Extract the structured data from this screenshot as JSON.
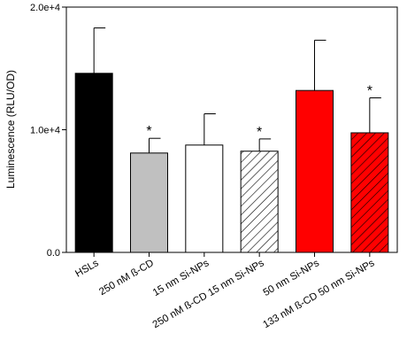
{
  "chart_data": {
    "type": "bar",
    "title": "",
    "xlabel": "",
    "ylabel": "Luminescence (RLU/OD)",
    "ylim": [
      0,
      20000
    ],
    "yticks": [
      0,
      10000,
      20000
    ],
    "ytick_labels": [
      "0.0",
      "1.0e+4",
      "2.0e+4"
    ],
    "grid": false,
    "categories": [
      "HSLs",
      "250 nM ß-CD",
      "15 nm Si-NPs",
      "250 nM ß-CD 15 nm Si-NPs",
      "50 nm Si-NPs",
      "133 nM ß-CD 50 nm Si-NPs"
    ],
    "values": [
      14600,
      8100,
      8750,
      8250,
      13200,
      9750
    ],
    "errors": [
      3700,
      1200,
      2550,
      1000,
      4100,
      2850
    ],
    "significance": [
      "",
      "*",
      "",
      "*",
      "",
      "*"
    ],
    "fills": [
      "#000000",
      "#c0c0c0",
      "#ffffff",
      "hatch-black",
      "#ff0000",
      "hatch-red"
    ]
  }
}
